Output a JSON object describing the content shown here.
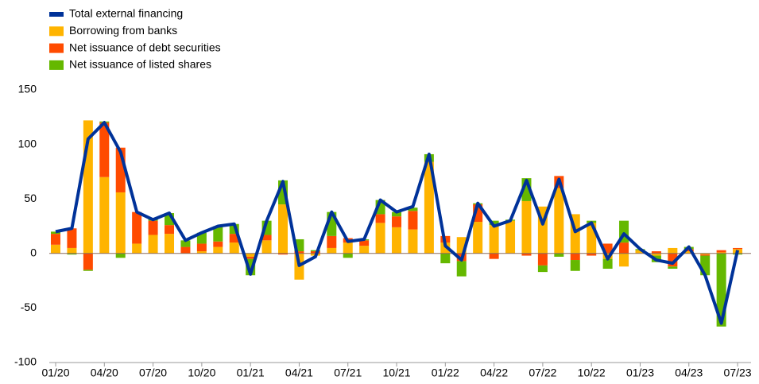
{
  "chart_data": {
    "type": "bar",
    "categories": [
      "01/20",
      null,
      null,
      "04/20",
      null,
      null,
      "07/20",
      null,
      null,
      "10/20",
      null,
      null,
      "01/21",
      null,
      null,
      "04/21",
      null,
      null,
      "07/21",
      null,
      null,
      "10/21",
      null,
      null,
      "01/22",
      null,
      null,
      "04/22",
      null,
      null,
      "07/22",
      null,
      null,
      "10/22",
      null,
      null,
      "01/23",
      null,
      null,
      "04/23",
      null,
      null,
      "07/23"
    ],
    "series": [
      {
        "name": "Total external financing",
        "type": "line",
        "color": "#003299",
        "values": [
          20,
          23,
          105,
          120,
          93,
          38,
          31,
          37,
          12,
          19,
          25,
          27,
          -19,
          30,
          66,
          -11,
          -3,
          38,
          11,
          13,
          49,
          38,
          43,
          91,
          7,
          -6,
          46,
          25,
          30,
          67,
          27,
          68,
          20,
          28,
          -5,
          18,
          4,
          -6,
          -9,
          6,
          -20,
          -64,
          3
        ]
      },
      {
        "name": "Borrowing from banks",
        "type": "bar",
        "color": "#ffb400",
        "values": [
          8,
          5,
          122,
          70,
          56,
          9,
          17,
          18,
          0,
          2,
          6,
          10,
          -3,
          12,
          45,
          -24,
          -2,
          5,
          10,
          7,
          28,
          24,
          22,
          84,
          10,
          15,
          29,
          26,
          30,
          48,
          43,
          60,
          36,
          28,
          -5,
          -12,
          3,
          -2,
          5,
          2,
          -1,
          1,
          4
        ]
      },
      {
        "name": "Net issuance of debt securities",
        "type": "bar",
        "color": "#ff4b00",
        "values": [
          10,
          18,
          -15,
          50,
          41,
          29,
          13,
          8,
          6,
          7,
          5,
          8,
          -2,
          5,
          -1,
          2,
          2,
          11,
          4,
          5,
          8,
          10,
          17,
          0,
          6,
          -7,
          16,
          -5,
          0,
          -2,
          -11,
          11,
          -6,
          -2,
          9,
          10,
          0,
          2,
          -12,
          2,
          -1,
          2,
          1
        ]
      },
      {
        "name": "Net issuance of listed shares",
        "type": "bar",
        "color": "#65b800",
        "values": [
          2,
          -1,
          -1,
          1,
          -4,
          0,
          2,
          11,
          6,
          10,
          14,
          9,
          -15,
          13,
          22,
          11,
          1,
          22,
          -4,
          1,
          13,
          4,
          3,
          7,
          -9,
          -14,
          1,
          4,
          1,
          21,
          -6,
          -3,
          -10,
          2,
          -9,
          20,
          1,
          -6,
          -2,
          2,
          -18,
          -67,
          -1
        ]
      }
    ],
    "ylim": [
      -100,
      150
    ],
    "yticks": [
      -100,
      -50,
      0,
      50,
      100,
      150
    ],
    "grid": false
  }
}
